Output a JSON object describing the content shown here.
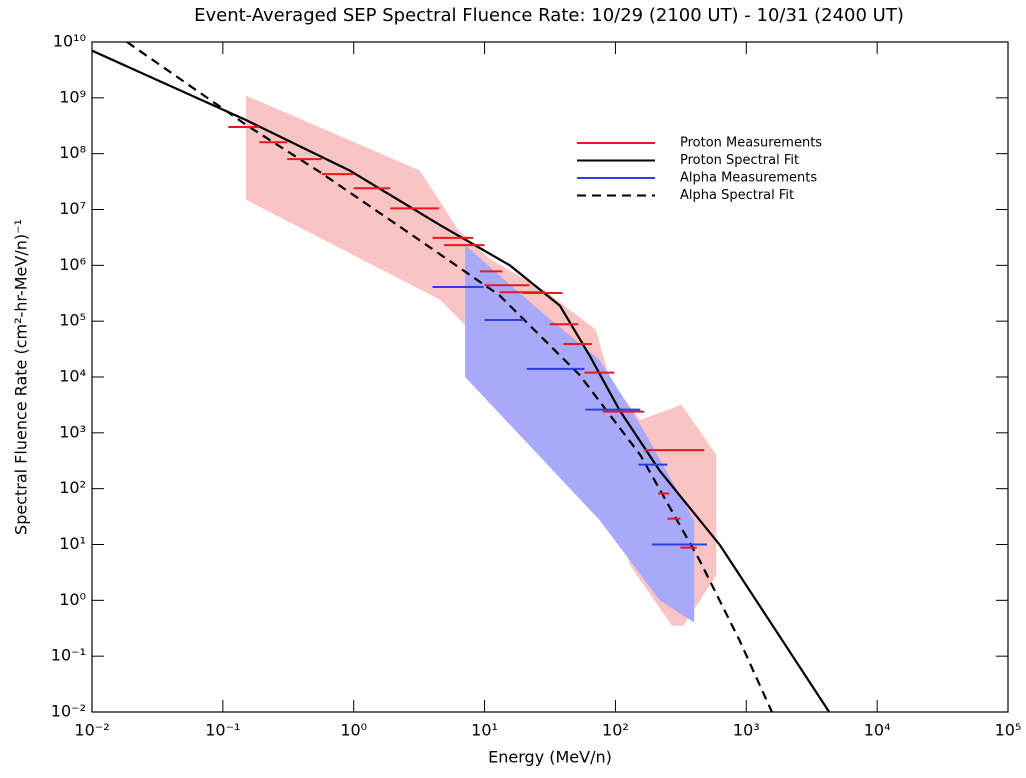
{
  "chart_data": {
    "type": "line",
    "title": "Event-Averaged SEP Spectral Fluence Rate: 10/29 (2100 UT) - 10/31 (2400 UT)",
    "x_label": "Energy (MeV/n)",
    "y_label": "Spectral Fluence Rate (cm²-hr-MeV/n)⁻¹",
    "x_log": true,
    "y_log": true,
    "grid": false,
    "legend": "upper right",
    "xlim": [
      0.01,
      100000
    ],
    "ylim": [
      0.01,
      10000000000
    ],
    "xticks": [
      {
        "value": 0.01,
        "label": "10⁻²"
      },
      {
        "value": 0.1,
        "label": "10⁻¹"
      },
      {
        "value": 1,
        "label": "10⁰"
      },
      {
        "value": 10,
        "label": "10¹"
      },
      {
        "value": 100,
        "label": "10²"
      },
      {
        "value": 1000,
        "label": "10³"
      },
      {
        "value": 10000,
        "label": "10⁴"
      },
      {
        "value": 100000,
        "label": "10⁵"
      }
    ],
    "yticks": [
      {
        "value": 0.01,
        "label": "10⁻²"
      },
      {
        "value": 0.1,
        "label": "10⁻¹"
      },
      {
        "value": 1,
        "label": "10⁰"
      },
      {
        "value": 10,
        "label": "10¹"
      },
      {
        "value": 100,
        "label": "10²"
      },
      {
        "value": 1000,
        "label": "10³"
      },
      {
        "value": 10000,
        "label": "10⁴"
      },
      {
        "value": 100000,
        "label": "10⁵"
      },
      {
        "value": 1000000,
        "label": "10⁶"
      },
      {
        "value": 10000000,
        "label": "10⁷"
      },
      {
        "value": 100000000,
        "label": "10⁸"
      },
      {
        "value": 1000000000,
        "label": "10⁹"
      },
      {
        "value": 10000000000,
        "label": "10¹⁰"
      }
    ],
    "bands": [
      {
        "color": "#fbc4c4",
        "x": [
          0.15,
          3.2,
          6.3,
          11,
          30,
          71,
          91,
          155,
          320,
          590,
          590,
          330,
          270,
          129,
          91,
          26,
          4.6,
          0.15
        ],
        "values": [
          1100000000,
          50000000,
          4300000,
          1300000,
          330000,
          70000,
          8700,
          1700,
          3200,
          400,
          2.8,
          0.35,
          0.35,
          4.3,
          140,
          3800,
          240000,
          15000000
        ]
      },
      {
        "color": "#a9a9f9",
        "x": [
          7.1,
          26,
          76,
          155,
          400,
          400,
          218,
          76,
          7.1
        ],
        "values": [
          2300000,
          160000,
          20000,
          1400,
          27,
          0.4,
          1,
          27,
          10000
        ]
      }
    ],
    "series": [
      {
        "name": "Proton Measurements",
        "color": "#e8191c",
        "kind": "range",
        "x_low": [
          0.11,
          0.19,
          0.31,
          0.57,
          1.0,
          1.9,
          4.0,
          4.9,
          9.2,
          10,
          13,
          19.5,
          31.4,
          40,
          58,
          80,
          166,
          212,
          250,
          313
        ],
        "x_high": [
          0.19,
          0.31,
          0.57,
          1.0,
          1.9,
          4.5,
          8.2,
          10,
          13.7,
          22,
          29,
          39.5,
          52,
          66,
          98,
          166,
          477,
          258,
          313,
          418
        ],
        "values": [
          300000000,
          160000000,
          80000000,
          43000000,
          24000000,
          10500000,
          3100000,
          2300000,
          780000,
          440000,
          330000,
          320000,
          88000,
          39000,
          12000,
          2400,
          490,
          82,
          29,
          8.8
        ]
      },
      {
        "name": "Proton Spectral Fit",
        "color": "#000000",
        "kind": "line",
        "dash": false,
        "x": [
          0.01,
          0.15,
          0.93,
          4.6,
          15.6,
          37.6,
          63,
          108,
          218,
          630,
          4300
        ],
        "values": [
          7000000000,
          400000000,
          50000000,
          5200000,
          1000000,
          190000,
          25000,
          2500,
          210,
          9.7,
          0.01
        ]
      },
      {
        "name": "Alpha Measurements",
        "color": "#2b3fe0",
        "kind": "range",
        "x_low": [
          4.0,
          10,
          21,
          59,
          150,
          190
        ],
        "x_high": [
          9.8,
          20,
          58,
          155,
          250,
          500
        ],
        "values": [
          410000,
          105000,
          14000,
          2600,
          270,
          10
        ]
      },
      {
        "name": "Alpha Spectral Fit",
        "color": "#000000",
        "kind": "line",
        "dash": true,
        "x": [
          0.0185,
          0.15,
          0.55,
          3.2,
          13,
          53,
          155,
          440,
          890,
          1570
        ],
        "values": [
          10000000000,
          330000000,
          47000000,
          2800000,
          290000,
          11000,
          400,
          5.2,
          0.19,
          0.01
        ]
      }
    ]
  }
}
